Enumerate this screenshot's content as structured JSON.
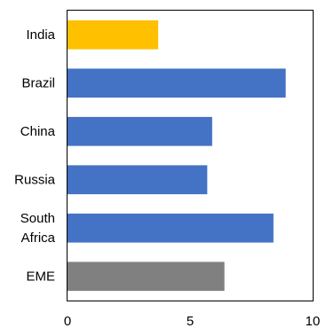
{
  "chart_data": {
    "type": "bar",
    "orientation": "horizontal",
    "categories": [
      {
        "label_lines": [
          "India"
        ]
      },
      {
        "label_lines": [
          "Brazil"
        ]
      },
      {
        "label_lines": [
          "China"
        ]
      },
      {
        "label_lines": [
          "Russia"
        ]
      },
      {
        "label_lines": [
          "South",
          "Africa"
        ]
      },
      {
        "label_lines": [
          "EME"
        ]
      }
    ],
    "values": [
      3.7,
      8.9,
      5.9,
      5.7,
      8.4,
      6.4
    ],
    "colors": [
      "#FFC000",
      "#4472C4",
      "#4472C4",
      "#4472C4",
      "#4472C4",
      "#808080"
    ],
    "xlim": [
      0,
      10
    ],
    "xticks": [
      0,
      5,
      10
    ],
    "grid": false,
    "legend": "none",
    "title": "",
    "xlabel": "",
    "ylabel": ""
  }
}
